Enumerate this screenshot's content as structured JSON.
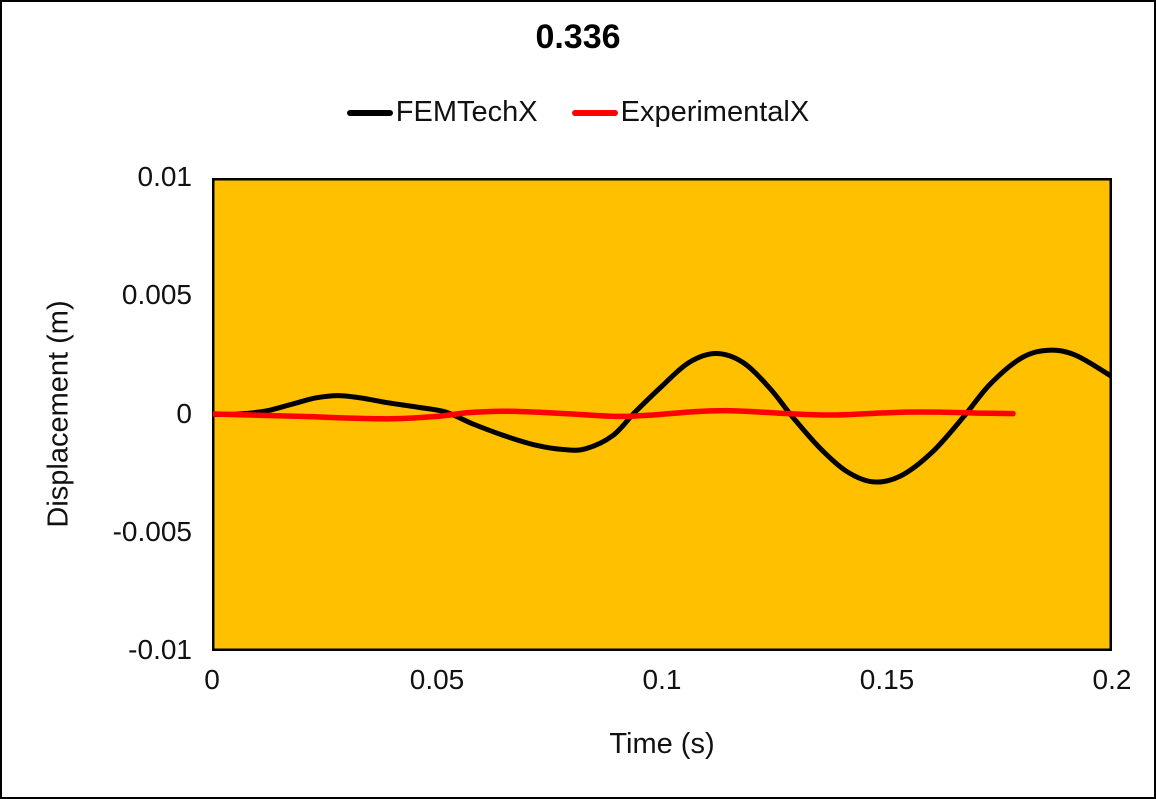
{
  "chart_data": {
    "type": "line",
    "title": "0.336",
    "xlabel": "Time (s)",
    "ylabel": "Displacement (m)",
    "xlim": [
      0,
      0.2
    ],
    "ylim": [
      -0.01,
      0.01
    ],
    "grid": false,
    "legend_position": "top",
    "plot_bg": "#FFC000",
    "plot_border_color": "#000000",
    "xticks": [
      {
        "value": 0,
        "label": "0"
      },
      {
        "value": 0.05,
        "label": "0.05"
      },
      {
        "value": 0.1,
        "label": "0.1"
      },
      {
        "value": 0.15,
        "label": "0.15"
      },
      {
        "value": 0.2,
        "label": "0.2"
      }
    ],
    "yticks": [
      {
        "value": 0.01,
        "label": "0.01"
      },
      {
        "value": 0.005,
        "label": "0.005"
      },
      {
        "value": 0,
        "label": "0"
      },
      {
        "value": -0.005,
        "label": "-0.005"
      },
      {
        "value": -0.01,
        "label": "-0.01"
      }
    ],
    "series": [
      {
        "name": "FEMTechX",
        "color": "#000000",
        "points": [
          [
            0,
            0
          ],
          [
            0.006,
            2e-05
          ],
          [
            0.012,
            0.00015
          ],
          [
            0.018,
            0.00045
          ],
          [
            0.023,
            0.0007
          ],
          [
            0.028,
            0.0008
          ],
          [
            0.033,
            0.0007
          ],
          [
            0.039,
            0.0005
          ],
          [
            0.046,
            0.0003
          ],
          [
            0.052,
            0.0001
          ],
          [
            0.058,
            -0.0004
          ],
          [
            0.065,
            -0.0009
          ],
          [
            0.072,
            -0.0013
          ],
          [
            0.078,
            -0.00148
          ],
          [
            0.083,
            -0.00145
          ],
          [
            0.089,
            -0.0009
          ],
          [
            0.094,
            0.0001
          ],
          [
            0.1,
            0.0012
          ],
          [
            0.106,
            0.0022
          ],
          [
            0.112,
            0.00258
          ],
          [
            0.118,
            0.0022
          ],
          [
            0.124,
            0.0011
          ],
          [
            0.129,
            -0.0001
          ],
          [
            0.135,
            -0.0014
          ],
          [
            0.141,
            -0.0024
          ],
          [
            0.147,
            -0.00285
          ],
          [
            0.153,
            -0.0026
          ],
          [
            0.16,
            -0.0016
          ],
          [
            0.167,
            -0.0001
          ],
          [
            0.173,
            0.0013
          ],
          [
            0.18,
            0.0024
          ],
          [
            0.186,
            0.00272
          ],
          [
            0.192,
            0.0025
          ],
          [
            0.2,
            0.0016
          ]
        ]
      },
      {
        "name": "ExperimentalX",
        "color": "#FF0000",
        "points": [
          [
            0,
            2e-05
          ],
          [
            0.01,
            -3e-05
          ],
          [
            0.02,
            -8e-05
          ],
          [
            0.03,
            -0.00015
          ],
          [
            0.04,
            -0.00018
          ],
          [
            0.05,
            -8e-05
          ],
          [
            0.057,
            8e-05
          ],
          [
            0.065,
            0.00014
          ],
          [
            0.072,
            0.0001
          ],
          [
            0.08,
            2e-05
          ],
          [
            0.09,
            -8e-05
          ],
          [
            0.098,
            -2e-05
          ],
          [
            0.107,
            0.00012
          ],
          [
            0.115,
            0.00016
          ],
          [
            0.122,
            0.0001
          ],
          [
            0.13,
            2e-05
          ],
          [
            0.138,
            -2e-05
          ],
          [
            0.146,
            4e-05
          ],
          [
            0.154,
            0.0001
          ],
          [
            0.162,
            0.0001
          ],
          [
            0.17,
            6e-05
          ],
          [
            0.178,
            4e-05
          ]
        ]
      }
    ]
  }
}
